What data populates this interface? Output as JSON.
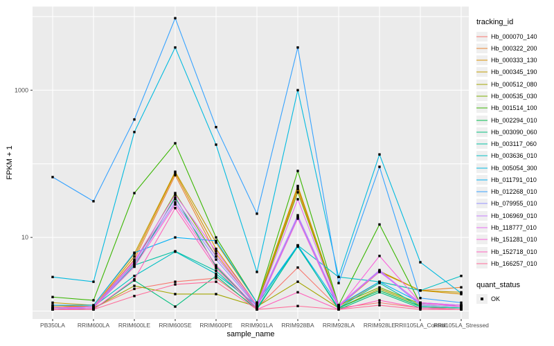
{
  "axes": {
    "x": {
      "label": "sample_name"
    },
    "y": {
      "label": "FPKM + 1",
      "tick_labels": [
        "1000",
        "10"
      ]
    }
  },
  "legend": {
    "tracking_title": "tracking_id",
    "quant_title": "quant_status",
    "quant_ok_label": "OK"
  },
  "colors": {
    "panel_bg": "#EBEBEB",
    "grid": "#FFFFFF",
    "tick_text": "#4D4D4D",
    "point": "#000000",
    "legend_key_bg": "#EFEFEF"
  },
  "chart_data": {
    "type": "line",
    "title": "",
    "xlabel": "sample_name",
    "ylabel": "FPKM + 1",
    "y_scale": "log10",
    "ylim": [
      1,
      13500
    ],
    "y_major_gridlines": [
      1,
      10,
      100,
      1000,
      10000
    ],
    "y_labeled_ticks": [
      1000,
      10
    ],
    "legend_position": "right",
    "grid": "on",
    "point_marker": "square",
    "categories": [
      "PB350LA",
      "RRIM600LA",
      "RRIM600LE",
      "RRIM600SE",
      "RRIM600PE",
      "RRIM901LA",
      "RRIM928BA",
      "RRIM928LA",
      "RRIM928LE",
      "RRII105LA_Control",
      "RRII105LA_Stressed"
    ],
    "series": [
      {
        "name": "Hb_000070_140",
        "color": "#F8766D",
        "values": [
          1.1,
          1.1,
          2.0,
          2.5,
          2.8,
          1.1,
          3.9,
          1.1,
          1.3,
          1.1,
          1.1
        ]
      },
      {
        "name": "Hb_000322_200",
        "color": "#EA8331",
        "values": [
          1.15,
          1.15,
          5.0,
          70,
          6.0,
          1.15,
          45,
          1.15,
          2.5,
          1.9,
          2.1
        ]
      },
      {
        "name": "Hb_000333_130",
        "color": "#D89000",
        "values": [
          1.2,
          1.15,
          5.5,
          75,
          7.0,
          1.2,
          48,
          1.15,
          3.4,
          1.9,
          1.7
        ]
      },
      {
        "name": "Hb_000345_190",
        "color": "#C09B00",
        "values": [
          1.3,
          1.2,
          6.0,
          78,
          8.5,
          1.3,
          50,
          1.2,
          3.5,
          1.9,
          1.8
        ]
      },
      {
        "name": "Hb_000512_080",
        "color": "#A3A500",
        "values": [
          1.1,
          1.1,
          2.2,
          1.7,
          1.7,
          1.15,
          2.5,
          1.1,
          2.0,
          1.2,
          1.15
        ]
      },
      {
        "name": "Hb_000535_030",
        "color": "#7CAE00",
        "values": [
          1.1,
          1.15,
          4.5,
          40,
          5.5,
          1.2,
          41,
          1.2,
          2.1,
          1.25,
          1.2
        ]
      },
      {
        "name": "Hb_001514_100",
        "color": "#39B600",
        "values": [
          1.55,
          1.4,
          40,
          190,
          10,
          1.3,
          80,
          1.2,
          15,
          1.25,
          1.2
        ]
      },
      {
        "name": "Hb_002294_010",
        "color": "#00BB4E",
        "values": [
          1.05,
          1.1,
          4.0,
          35,
          4.0,
          1.1,
          19,
          1.1,
          1.9,
          1.15,
          1.1
        ]
      },
      {
        "name": "Hb_003090_060",
        "color": "#00BF7D",
        "values": [
          1.05,
          1.05,
          2.6,
          1.15,
          3.0,
          1.05,
          7.8,
          1.05,
          1.8,
          1.1,
          1.05
        ]
      },
      {
        "name": "Hb_003117_060",
        "color": "#00C1A3",
        "values": [
          1.05,
          1.1,
          4.2,
          6.5,
          3.5,
          1.1,
          7.5,
          1.1,
          2.4,
          1.15,
          1.1
        ]
      },
      {
        "name": "Hb_003636_010",
        "color": "#00BFC4",
        "values": [
          1.1,
          1.15,
          3.0,
          6.4,
          3.2,
          1.2,
          7.8,
          2.9,
          2.5,
          1.9,
          3.0
        ]
      },
      {
        "name": "Hb_005054_300",
        "color": "#00BAE0",
        "values": [
          2.9,
          2.5,
          270,
          3800,
          182,
          3.4,
          1000,
          2.9,
          134,
          4.6,
          1.75
        ]
      },
      {
        "name": "Hb_011791_010",
        "color": "#00B0F6",
        "values": [
          1.2,
          1.2,
          6.2,
          10,
          9.0,
          1.3,
          7.8,
          1.2,
          2.5,
          1.3,
          1.2
        ]
      },
      {
        "name": "Hb_012268_010",
        "color": "#35A2FF",
        "values": [
          66,
          31,
          400,
          9500,
          315,
          21,
          3800,
          2.4,
          91,
          1.5,
          1.3
        ]
      },
      {
        "name": "Hb_079955_010",
        "color": "#9590FF",
        "values": [
          1.1,
          1.1,
          4.3,
          30,
          5.0,
          1.15,
          19,
          1.15,
          3.5,
          1.2,
          1.15
        ]
      },
      {
        "name": "Hb_106969_010",
        "color": "#C77CFF",
        "values": [
          1.1,
          1.1,
          4.6,
          33,
          5.5,
          1.2,
          20,
          1.2,
          3.6,
          1.25,
          1.2
        ]
      },
      {
        "name": "Hb_118777_010",
        "color": "#E76BF3",
        "values": [
          1.1,
          1.15,
          4.8,
          38,
          6.5,
          1.2,
          33,
          1.2,
          3.4,
          1.3,
          1.2
        ]
      },
      {
        "name": "Hb_151281_010",
        "color": "#FA62DB",
        "values": [
          1.05,
          1.1,
          4.0,
          28,
          4.2,
          1.1,
          18,
          1.1,
          5.6,
          1.3,
          1.15
        ]
      },
      {
        "name": "Hb_152718_010",
        "color": "#FF62BC",
        "values": [
          1.05,
          1.05,
          2.7,
          25,
          3.8,
          1.05,
          1.8,
          1.05,
          1.4,
          1.1,
          1.05
        ]
      },
      {
        "name": "Hb_166257_010",
        "color": "#FF6A98",
        "values": [
          1.05,
          1.05,
          1.6,
          2.3,
          2.5,
          1.05,
          1.17,
          1.05,
          1.2,
          1.05,
          1.05
        ]
      }
    ]
  }
}
